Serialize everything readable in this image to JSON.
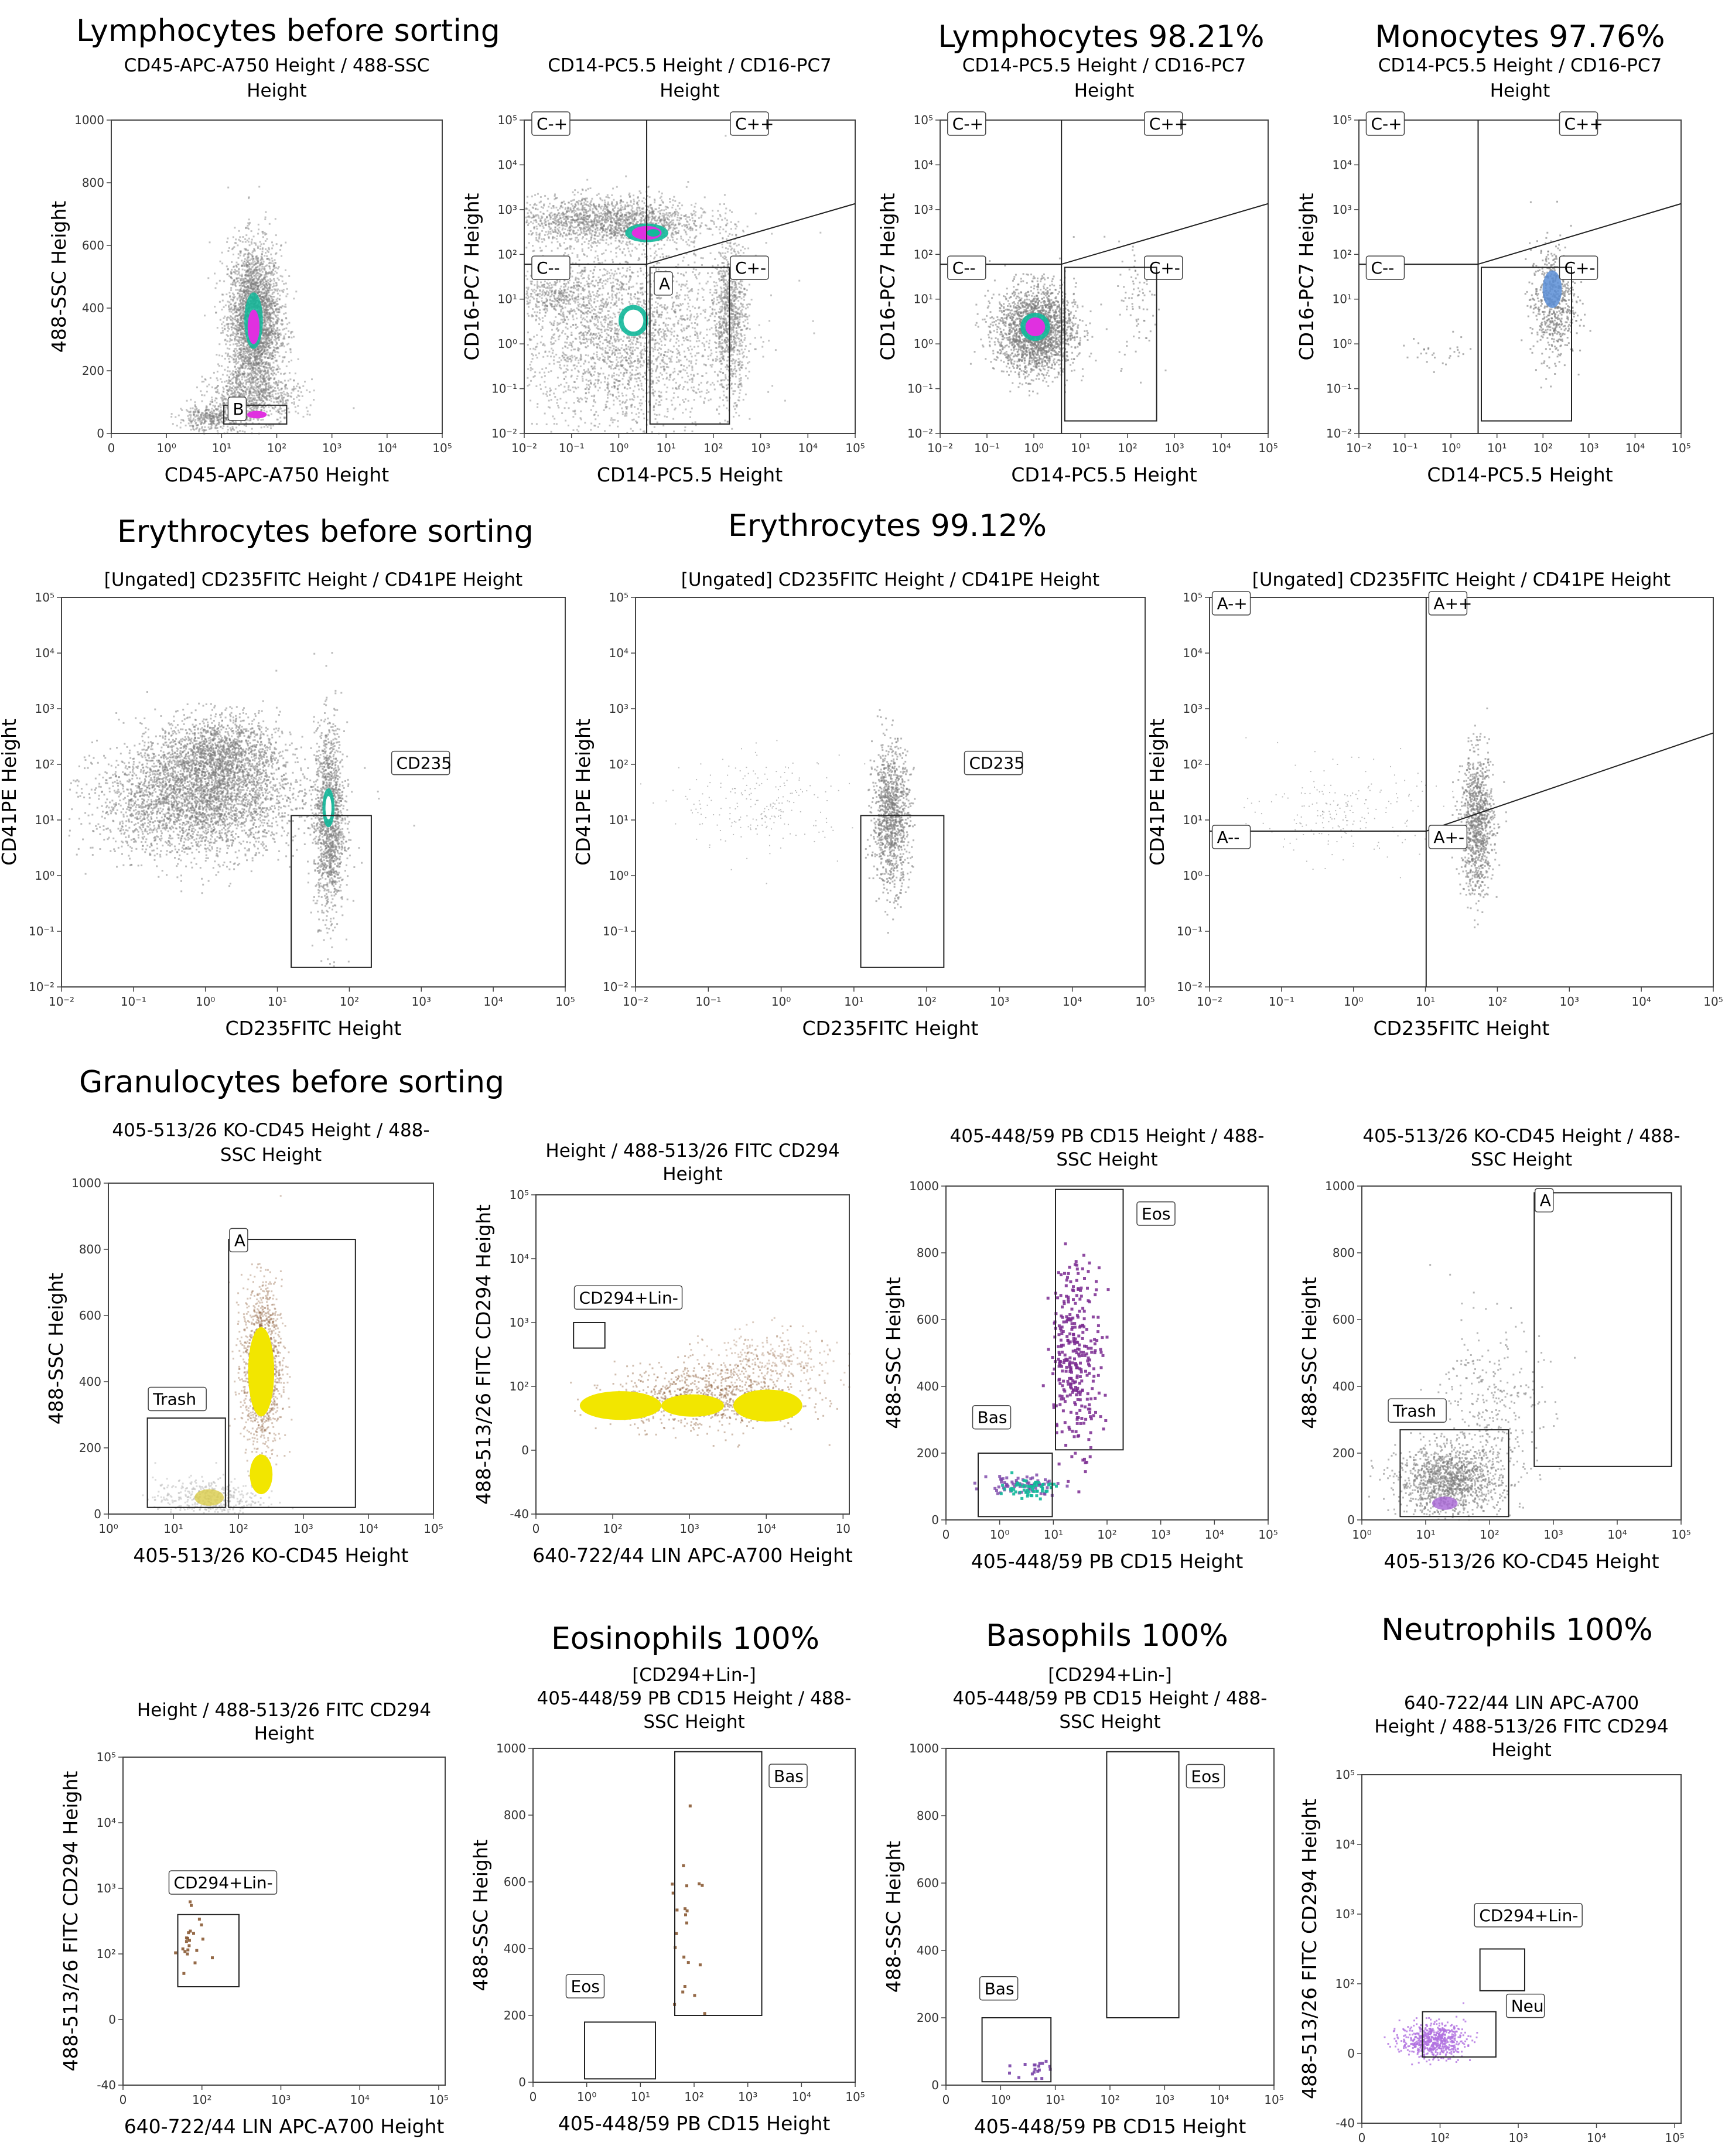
{
  "section_titles": [
    "Lymphocytes before sorting",
    "Lymphocytes 98.21%",
    "Monocytes 97.76%",
    "Erythrocytes before sorting",
    "Erythrocytes 99.12%",
    "Granulocytes before sorting",
    "Eosinophils 100%",
    "Basophils 100%",
    "Neutrophils 100%"
  ],
  "colors": {
    "dots": "#7a7a7a",
    "gate": "#222222",
    "density_cyan": "#12b89a",
    "density_magenta": "#e030e0",
    "density_yellow": "#f2e600",
    "density_brown": "#8a5a34",
    "eos_purple": "#7a2a90",
    "bas_purple": "#7a44a8",
    "neu_purple": "#b070e0",
    "mono_blue": "#5b8ed6"
  },
  "chart_data": [
    {
      "id": "p1",
      "type": "scatter",
      "title_lines": [
        "CD45-APC-A750 Height / 488-SSC",
        "Height"
      ],
      "xlabel": "CD45-APC-A750 Height",
      "ylabel": "488-SSC Height",
      "x_ticks": [
        "0",
        "10⁰",
        "10¹",
        "10²",
        "10³",
        "10⁴",
        "10⁵"
      ],
      "y_ticks": [
        "0",
        "200",
        "400",
        "600",
        "800",
        "1000"
      ],
      "gates": [
        {
          "label": "B"
        }
      ]
    },
    {
      "id": "p2",
      "type": "scatter",
      "title_lines": [
        "CD14-PC5.5 Height / CD16-PC7",
        "Height"
      ],
      "xlabel": "CD14-PC5.5 Height",
      "ylabel": "CD16-PC7 Height",
      "x_ticks": [
        "10⁻²",
        "10⁻¹",
        "10⁰",
        "10¹",
        "10²",
        "10³",
        "10⁴",
        "10⁵"
      ],
      "y_ticks": [
        "10⁻²",
        "10⁻¹",
        "10⁰",
        "10¹",
        "10²",
        "10³",
        "10⁴",
        "10⁵"
      ],
      "gates": [
        {
          "label": "C-+"
        },
        {
          "label": "C++"
        },
        {
          "label": "C--"
        },
        {
          "label": "C+-"
        },
        {
          "label": "A"
        }
      ]
    },
    {
      "id": "p3",
      "type": "scatter",
      "title_lines": [
        "CD14-PC5.5 Height / CD16-PC7",
        "Height"
      ],
      "xlabel": "CD14-PC5.5 Height",
      "ylabel": "CD16-PC7 Height",
      "x_ticks": [
        "10⁻²",
        "10⁻¹",
        "10⁰",
        "10¹",
        "10²",
        "10³",
        "10⁴",
        "10⁵"
      ],
      "y_ticks": [
        "10⁻²",
        "10⁻¹",
        "10⁰",
        "10¹",
        "10²",
        "10³",
        "10⁴",
        "10⁵"
      ],
      "gates": [
        {
          "label": "C-+"
        },
        {
          "label": "C++"
        },
        {
          "label": "C--"
        },
        {
          "label": "C+-"
        }
      ]
    },
    {
      "id": "p4",
      "type": "scatter",
      "title_lines": [
        "CD14-PC5.5 Height / CD16-PC7",
        "Height"
      ],
      "xlabel": "CD14-PC5.5 Height",
      "ylabel": "CD16-PC7 Height",
      "x_ticks": [
        "10⁻²",
        "10⁻¹",
        "10⁰",
        "10¹",
        "10²",
        "10³",
        "10⁴",
        "10⁵"
      ],
      "y_ticks": [
        "10⁻²",
        "10⁻¹",
        "10⁰",
        "10¹",
        "10²",
        "10³",
        "10⁴",
        "10⁵"
      ],
      "gates": [
        {
          "label": "C-+"
        },
        {
          "label": "C++"
        },
        {
          "label": "C--"
        },
        {
          "label": "C+-"
        }
      ]
    },
    {
      "id": "p5",
      "type": "scatter",
      "title_lines": [
        "[Ungated] CD235FITC Height / CD41PE Height"
      ],
      "xlabel": "CD235FITC Height",
      "ylabel": "CD41PE Height",
      "x_ticks": [
        "10⁻²",
        "10⁻¹",
        "10⁰",
        "10¹",
        "10²",
        "10³",
        "10⁴",
        "10⁵"
      ],
      "y_ticks": [
        "10⁻²",
        "10⁻¹",
        "10⁰",
        "10¹",
        "10²",
        "10³",
        "10⁴",
        "10⁵"
      ],
      "gates": [
        {
          "label": "CD235"
        }
      ]
    },
    {
      "id": "p6",
      "type": "scatter",
      "title_lines": [
        "[Ungated] CD235FITC Height / CD41PE Height"
      ],
      "xlabel": "CD235FITC Height",
      "ylabel": "CD41PE Height",
      "x_ticks": [
        "10⁻²",
        "10⁻¹",
        "10⁰",
        "10¹",
        "10²",
        "10³",
        "10⁴",
        "10⁵"
      ],
      "y_ticks": [
        "10⁻²",
        "10⁻¹",
        "10⁰",
        "10¹",
        "10²",
        "10³",
        "10⁴",
        "10⁵"
      ],
      "gates": [
        {
          "label": "CD235"
        }
      ]
    },
    {
      "id": "p7",
      "type": "scatter",
      "title_lines": [
        "[Ungated] CD235FITC Height / CD41PE Height"
      ],
      "xlabel": "CD235FITC Height",
      "ylabel": "CD41PE Height",
      "x_ticks": [
        "10⁻²",
        "10⁻¹",
        "10⁰",
        "10¹",
        "10²",
        "10³",
        "10⁴",
        "10⁵"
      ],
      "y_ticks": [
        "10⁻²",
        "10⁻¹",
        "10⁰",
        "10¹",
        "10²",
        "10³",
        "10⁴",
        "10⁵"
      ],
      "gates": [
        {
          "label": "A-+"
        },
        {
          "label": "A++"
        },
        {
          "label": "A--"
        },
        {
          "label": "A+-"
        }
      ]
    },
    {
      "id": "p8",
      "type": "scatter",
      "title_lines": [
        "405-513/26 KO-CD45 Height / 488-",
        "SSC Height"
      ],
      "xlabel": "405-513/26 KO-CD45 Height",
      "ylabel": "488-SSC Height",
      "x_ticks": [
        "10⁰",
        "10¹",
        "10²",
        "10³",
        "10⁴",
        "10⁵"
      ],
      "y_ticks": [
        "0",
        "200",
        "400",
        "600",
        "800",
        "1000"
      ],
      "gates": [
        {
          "label": "A"
        },
        {
          "label": "Trash"
        }
      ]
    },
    {
      "id": "p9",
      "type": "scatter",
      "title_lines": [
        "Height / 488-513/26 FITC CD294",
        "Height"
      ],
      "xlabel": "640-722/44  LIN APC-A700 Height",
      "ylabel": "488-513/26 FITC CD294 Height",
      "x_ticks": [
        "0",
        "10²",
        "10³",
        "10⁴",
        "10"
      ],
      "y_ticks": [
        "-40",
        "0",
        "10²",
        "10³",
        "10⁴",
        "10⁵"
      ],
      "gates": [
        {
          "label": "CD294+Lin-"
        }
      ]
    },
    {
      "id": "p10",
      "type": "scatter",
      "title_lines": [
        "405-448/59 PB CD15 Height / 488-",
        "SSC Height"
      ],
      "xlabel": "405-448/59 PB CD15 Height",
      "ylabel": "488-SSC Height",
      "x_ticks": [
        "0",
        "10⁰",
        "10¹",
        "10²",
        "10³",
        "10⁴",
        "10⁵"
      ],
      "y_ticks": [
        "0",
        "200",
        "400",
        "600",
        "800",
        "1000"
      ],
      "gates": [
        {
          "label": "Eos"
        },
        {
          "label": "Bas"
        }
      ]
    },
    {
      "id": "p11",
      "type": "scatter",
      "title_lines": [
        "405-513/26 KO-CD45 Height / 488-",
        "SSC Height"
      ],
      "xlabel": "405-513/26 KO-CD45 Height",
      "ylabel": "488-SSC Height",
      "x_ticks": [
        "10⁰",
        "10¹",
        "10²",
        "10³",
        "10⁴",
        "10⁵"
      ],
      "y_ticks": [
        "0",
        "200",
        "400",
        "600",
        "800",
        "1000"
      ],
      "gates": [
        {
          "label": "A"
        },
        {
          "label": "Trash"
        }
      ]
    },
    {
      "id": "p12",
      "type": "scatter",
      "title_lines": [
        "Height / 488-513/26 FITC CD294",
        "Height"
      ],
      "xlabel": "640-722/44  LIN APC-A700 Height",
      "ylabel": "488-513/26 FITC CD294 Height",
      "x_ticks": [
        "0",
        "10²",
        "10³",
        "10⁴",
        "10⁵"
      ],
      "y_ticks": [
        "-40",
        "0",
        "10²",
        "10³",
        "10⁴",
        "10⁵"
      ],
      "gates": [
        {
          "label": "CD294+Lin-"
        }
      ]
    },
    {
      "id": "p13",
      "type": "scatter",
      "title_lines": [
        "[CD294+Lin-]",
        "405-448/59 PB CD15 Height / 488-",
        "SSC Height"
      ],
      "xlabel": "405-448/59 PB CD15 Height",
      "ylabel": "488-SSC Height",
      "x_ticks": [
        "0",
        "10⁰",
        "10¹",
        "10²",
        "10³",
        "10⁴",
        "10⁵"
      ],
      "y_ticks": [
        "0",
        "200",
        "400",
        "600",
        "800",
        "1000"
      ],
      "gates": [
        {
          "label": "Eos"
        },
        {
          "label": "Bas"
        }
      ]
    },
    {
      "id": "p14",
      "type": "scatter",
      "title_lines": [
        "[CD294+Lin-]",
        "405-448/59 PB CD15 Height / 488-",
        "SSC Height"
      ],
      "xlabel": "405-448/59 PB CD15 Height",
      "ylabel": "488-SSC Height",
      "x_ticks": [
        "0",
        "10⁰",
        "10¹",
        "10²",
        "10³",
        "10⁴",
        "10⁵"
      ],
      "y_ticks": [
        "0",
        "200",
        "400",
        "600",
        "800",
        "1000"
      ],
      "gates": [
        {
          "label": "Eos"
        },
        {
          "label": "Bas"
        }
      ]
    },
    {
      "id": "p15",
      "type": "scatter",
      "title_lines": [
        "640-722/44  LIN APC-A700",
        "Height / 488-513/26 FITC CD294",
        "Height"
      ],
      "xlabel": "640-722/44  LIN APC-A700 Height",
      "ylabel": "488-513/26 FITC CD294 Height",
      "x_ticks": [
        "0",
        "10²",
        "10³",
        "10⁴",
        "10⁵"
      ],
      "y_ticks": [
        "-40",
        "0",
        "10²",
        "10³",
        "10⁴",
        "10⁵"
      ],
      "gates": [
        {
          "label": "CD294+Lin-"
        },
        {
          "label": "Neu"
        }
      ]
    }
  ]
}
